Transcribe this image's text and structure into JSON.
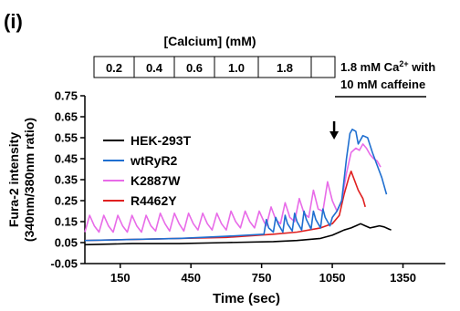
{
  "chart_data": {
    "type": "line",
    "panel_label": "(i)",
    "xlabel": "Time (sec)",
    "ylabel_line1": "Fura-2 intensity",
    "ylabel_line2": "(340nm/380nm ratio)",
    "xlim": [
      0,
      1530
    ],
    "ylim": [
      -0.05,
      0.75
    ],
    "x_ticks": [
      150,
      450,
      750,
      1050,
      1350
    ],
    "y_ticks": [
      -0.05,
      0.05,
      0.15,
      0.25,
      0.35,
      0.45,
      0.55,
      0.65,
      0.75
    ],
    "calcium_header": "[Calcium] (mM)",
    "calcium_boxes": [
      "0.2",
      "0.4",
      "0.6",
      "1.0",
      "1.8"
    ],
    "caffeine_line1_pre": "1.8 mM Ca",
    "caffeine_sup": "2+",
    "caffeine_line1_post": " with",
    "caffeine_line2": "10 mM caffeine",
    "arrow_x": 1050,
    "legend": [
      "HEK-293T",
      "wtRyR2",
      "K2887W",
      "R4462Y"
    ],
    "series": [
      {
        "name": "HEK-293T",
        "color": "#000000",
        "points": [
          [
            0,
            0.04
          ],
          [
            200,
            0.045
          ],
          [
            400,
            0.045
          ],
          [
            600,
            0.05
          ],
          [
            800,
            0.055
          ],
          [
            900,
            0.06
          ],
          [
            1000,
            0.07
          ],
          [
            1050,
            0.085
          ],
          [
            1080,
            0.1
          ],
          [
            1100,
            0.11
          ],
          [
            1130,
            0.12
          ],
          [
            1150,
            0.13
          ],
          [
            1170,
            0.14
          ],
          [
            1190,
            0.13
          ],
          [
            1210,
            0.12
          ],
          [
            1230,
            0.125
          ],
          [
            1250,
            0.13
          ],
          [
            1270,
            0.125
          ],
          [
            1290,
            0.115
          ],
          [
            1300,
            0.11
          ]
        ]
      },
      {
        "name": "wtRyR2",
        "color": "#1f6fd0",
        "points": [
          [
            0,
            0.06
          ],
          [
            200,
            0.065
          ],
          [
            400,
            0.07
          ],
          [
            600,
            0.08
          ],
          [
            760,
            0.09
          ],
          [
            770,
            0.16
          ],
          [
            780,
            0.12
          ],
          [
            800,
            0.1
          ],
          [
            810,
            0.17
          ],
          [
            820,
            0.14
          ],
          [
            840,
            0.1
          ],
          [
            850,
            0.18
          ],
          [
            860,
            0.14
          ],
          [
            880,
            0.105
          ],
          [
            890,
            0.19
          ],
          [
            900,
            0.15
          ],
          [
            920,
            0.11
          ],
          [
            930,
            0.2
          ],
          [
            940,
            0.16
          ],
          [
            960,
            0.115
          ],
          [
            970,
            0.2
          ],
          [
            980,
            0.16
          ],
          [
            1000,
            0.12
          ],
          [
            1010,
            0.21
          ],
          [
            1020,
            0.17
          ],
          [
            1040,
            0.13
          ],
          [
            1050,
            0.17
          ],
          [
            1070,
            0.2
          ],
          [
            1090,
            0.25
          ],
          [
            1110,
            0.45
          ],
          [
            1125,
            0.57
          ],
          [
            1135,
            0.59
          ],
          [
            1150,
            0.58
          ],
          [
            1160,
            0.52
          ],
          [
            1180,
            0.56
          ],
          [
            1200,
            0.55
          ],
          [
            1220,
            0.48
          ],
          [
            1240,
            0.42
          ],
          [
            1260,
            0.36
          ],
          [
            1280,
            0.28
          ]
        ]
      },
      {
        "name": "K2887W",
        "color": "#e86be8",
        "points": [
          [
            0,
            0.1
          ],
          [
            20,
            0.18
          ],
          [
            40,
            0.13
          ],
          [
            60,
            0.1
          ],
          [
            80,
            0.18
          ],
          [
            100,
            0.13
          ],
          [
            120,
            0.1
          ],
          [
            140,
            0.18
          ],
          [
            160,
            0.13
          ],
          [
            180,
            0.1
          ],
          [
            200,
            0.18
          ],
          [
            220,
            0.13
          ],
          [
            240,
            0.1
          ],
          [
            260,
            0.18
          ],
          [
            280,
            0.13
          ],
          [
            300,
            0.105
          ],
          [
            320,
            0.19
          ],
          [
            340,
            0.14
          ],
          [
            360,
            0.105
          ],
          [
            380,
            0.19
          ],
          [
            400,
            0.14
          ],
          [
            420,
            0.105
          ],
          [
            440,
            0.19
          ],
          [
            460,
            0.14
          ],
          [
            480,
            0.11
          ],
          [
            500,
            0.19
          ],
          [
            520,
            0.14
          ],
          [
            540,
            0.11
          ],
          [
            560,
            0.19
          ],
          [
            580,
            0.14
          ],
          [
            600,
            0.11
          ],
          [
            620,
            0.2
          ],
          [
            640,
            0.15
          ],
          [
            660,
            0.12
          ],
          [
            680,
            0.2
          ],
          [
            700,
            0.15
          ],
          [
            720,
            0.12
          ],
          [
            740,
            0.2
          ],
          [
            760,
            0.15
          ],
          [
            770,
            0.13
          ],
          [
            790,
            0.22
          ],
          [
            810,
            0.16
          ],
          [
            830,
            0.14
          ],
          [
            850,
            0.24
          ],
          [
            870,
            0.17
          ],
          [
            890,
            0.15
          ],
          [
            910,
            0.26
          ],
          [
            930,
            0.19
          ],
          [
            950,
            0.17
          ],
          [
            970,
            0.3
          ],
          [
            990,
            0.21
          ],
          [
            1010,
            0.2
          ],
          [
            1030,
            0.34
          ],
          [
            1050,
            0.25
          ],
          [
            1070,
            0.2
          ],
          [
            1090,
            0.25
          ],
          [
            1110,
            0.38
          ],
          [
            1130,
            0.48
          ],
          [
            1150,
            0.5
          ],
          [
            1165,
            0.49
          ],
          [
            1180,
            0.52
          ],
          [
            1195,
            0.5
          ],
          [
            1210,
            0.47
          ],
          [
            1225,
            0.45
          ],
          [
            1240,
            0.44
          ],
          [
            1255,
            0.41
          ]
        ]
      },
      {
        "name": "R4462Y",
        "color": "#e02020",
        "points": [
          [
            0,
            0.06
          ],
          [
            200,
            0.065
          ],
          [
            400,
            0.07
          ],
          [
            600,
            0.075
          ],
          [
            800,
            0.09
          ],
          [
            900,
            0.1
          ],
          [
            1000,
            0.12
          ],
          [
            1050,
            0.14
          ],
          [
            1080,
            0.18
          ],
          [
            1100,
            0.28
          ],
          [
            1120,
            0.36
          ],
          [
            1130,
            0.39
          ],
          [
            1140,
            0.36
          ],
          [
            1160,
            0.3
          ],
          [
            1180,
            0.26
          ],
          [
            1190,
            0.22
          ]
        ]
      }
    ]
  }
}
